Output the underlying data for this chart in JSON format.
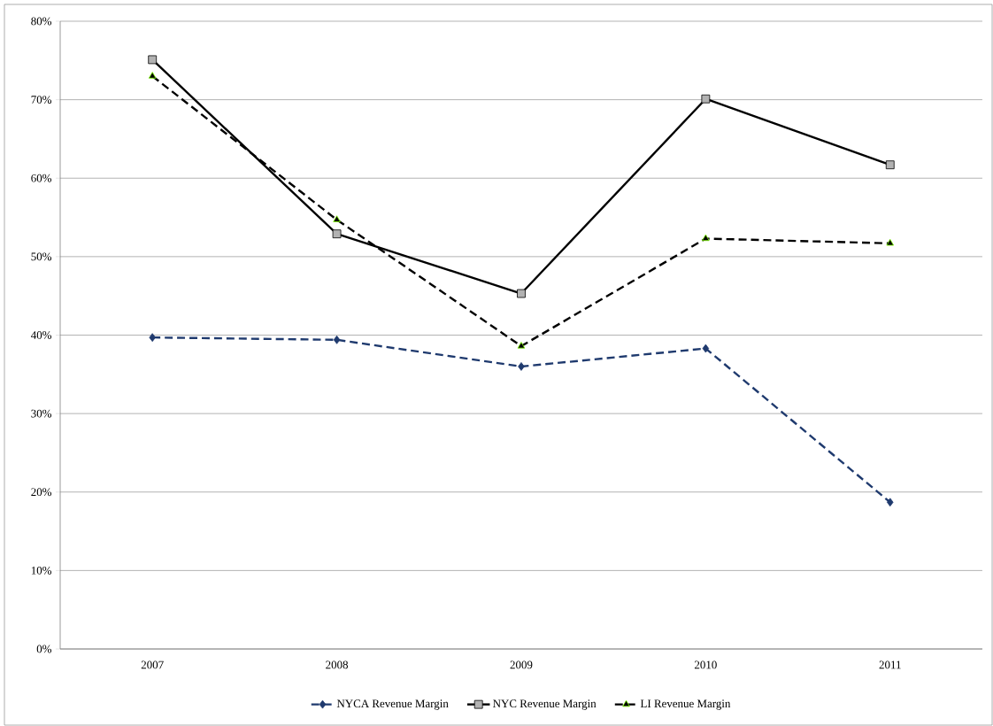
{
  "chart_data": {
    "type": "line",
    "categories": [
      "2007",
      "2008",
      "2009",
      "2010",
      "2011"
    ],
    "series": [
      {
        "name": "NYCA Revenue Margin",
        "color": "#1f3a6e",
        "marker": "diamond",
        "line_style": "dashed",
        "values": [
          39.7,
          39.4,
          36.0,
          38.3,
          18.7
        ]
      },
      {
        "name": "NYC Revenue Margin",
        "color": "#000000",
        "marker": "square",
        "line_style": "solid",
        "values": [
          75.1,
          52.9,
          45.3,
          70.1,
          61.7
        ]
      },
      {
        "name": "LI Revenue Margin",
        "color": "#000000",
        "marker": "triangle",
        "line_style": "dashed",
        "values": [
          73.0,
          54.7,
          38.6,
          52.3,
          51.7
        ]
      }
    ],
    "ylim": [
      0,
      80
    ],
    "yticks": [
      {
        "value": 0,
        "label": "0%"
      },
      {
        "value": 10,
        "label": "10%"
      },
      {
        "value": 20,
        "label": "20%"
      },
      {
        "value": 30,
        "label": "30%"
      },
      {
        "value": 40,
        "label": "40%"
      },
      {
        "value": 50,
        "label": "50%"
      },
      {
        "value": 60,
        "label": "60%"
      },
      {
        "value": 70,
        "label": "70%"
      },
      {
        "value": 80,
        "label": "80%"
      }
    ],
    "grid": "y",
    "legend": "bottom"
  }
}
